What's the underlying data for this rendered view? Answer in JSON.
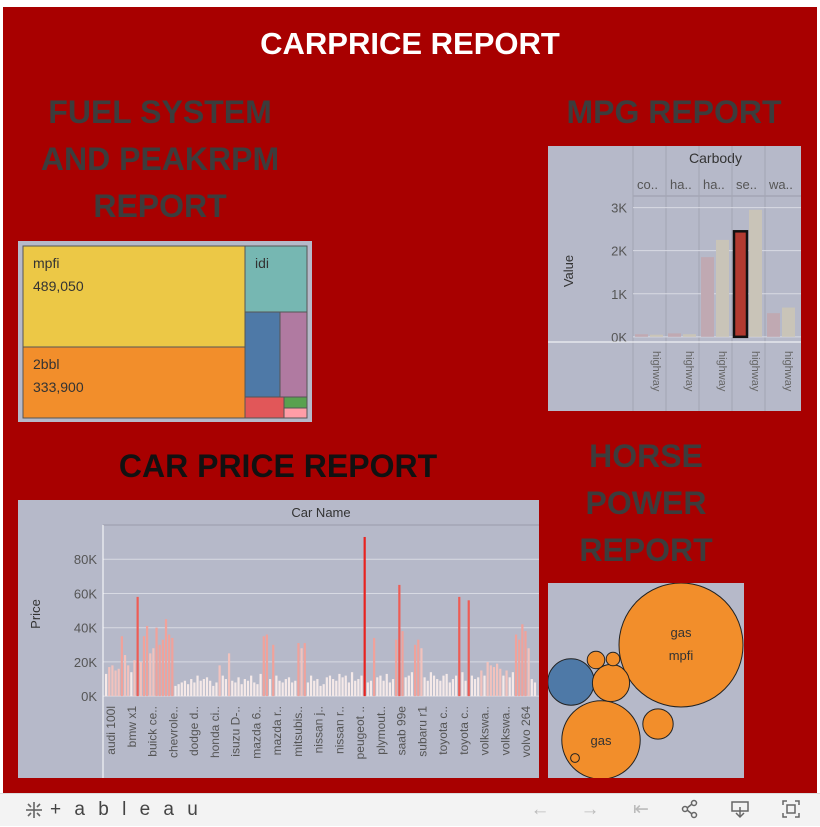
{
  "dashboard": {
    "title": "CARPRICE REPORT"
  },
  "sections": {
    "fuel_title": [
      "FUEL SYSTEM",
      "AND PEAKRPM",
      "REPORT"
    ],
    "mpg_title": "MPG REPORT",
    "price_title": "CAR PRICE REPORT",
    "hp_title": [
      "HORSE",
      "POWER",
      "REPORT"
    ]
  },
  "colors": {
    "background": "#a80000",
    "panel": "#b6b9c9",
    "mpfi": "#ecc846",
    "2bbl": "#f28e2b",
    "idi": "#76b7b2",
    "blue": "#4e79a7",
    "purple": "#b07aa1",
    "red": "#e15759",
    "green": "#59a14f",
    "pink": "#ff9da7",
    "bubble_orange": "#f28e2b",
    "bubble_blue": "#4e79a7"
  },
  "chart_data": [
    {
      "type": "treemap",
      "name": "fuel-system-treemap",
      "items": [
        {
          "label": "mpfi",
          "value": 489050,
          "value_label": "489,050",
          "color": "#ecc846"
        },
        {
          "label": "2bbl",
          "value": 333900,
          "value_label": "333,900",
          "color": "#f28e2b"
        },
        {
          "label": "idi",
          "value": 101000,
          "value_label": "",
          "color": "#76b7b2"
        },
        {
          "label": "",
          "value": 86000,
          "value_label": "",
          "color": "#4e79a7"
        },
        {
          "label": "",
          "value": 86000,
          "value_label": "",
          "color": "#b07aa1"
        },
        {
          "label": "",
          "value": 21000,
          "value_label": "",
          "color": "#e15759"
        },
        {
          "label": "",
          "value": 5500,
          "value_label": "",
          "color": "#59a14f"
        },
        {
          "label": "",
          "value": 5500,
          "value_label": "",
          "color": "#ff9da7"
        }
      ]
    },
    {
      "type": "bar",
      "name": "mpg-report",
      "header": "Carbody",
      "categories": [
        "co..",
        "ha..",
        "ha..",
        "se..",
        "wa.."
      ],
      "sub_label": "highway",
      "ylabel": "Value",
      "yticks": [
        "0K",
        "1K",
        "2K",
        "3K"
      ],
      "ylim": [
        -0.12,
        3.2
      ],
      "series": [
        {
          "values": [
            0.06,
            0.08,
            1.85,
            2.45,
            0.55
          ],
          "colors": [
            "#c0a9b2",
            "#c0a9b2",
            "#c0a9b2",
            "#b23a30",
            "#c0a9b2"
          ]
        },
        {
          "values": [
            0.05,
            0.06,
            2.25,
            2.95,
            0.68
          ],
          "colors": [
            "#c9c4b8",
            "#c9c4b8",
            "#c9c4b8",
            "#c9c4b8",
            "#c9c4b8"
          ]
        }
      ],
      "highlighted_index": 3
    },
    {
      "type": "bar",
      "name": "car-price-report",
      "header": "Car Name",
      "ylabel": "Price",
      "yticks": [
        "0K",
        "20K",
        "40K",
        "60K",
        "80K"
      ],
      "ylim": [
        -4,
        100
      ],
      "category_labels": [
        "audi 100l",
        "bmw x1",
        "buick ce..",
        "chevrole..",
        "dodge d..",
        "honda ci..",
        "isuzu D-..",
        "mazda 6..",
        "mazda r..",
        "mitsubis..",
        "nissan j..",
        "nissan r..",
        "peugeot ..",
        "plymout..",
        "saab 99e",
        "subaru r1",
        "toyota c..",
        "toyota c..",
        "volkswa..",
        "volkswa..",
        "volvo 264"
      ],
      "values_k": [
        13,
        17,
        18,
        15,
        16,
        35,
        24,
        18,
        14,
        21,
        58,
        20,
        35,
        41,
        25,
        28,
        40,
        30,
        33,
        45,
        36,
        34,
        6,
        7,
        8,
        9,
        7,
        10,
        8,
        12,
        9,
        10,
        11,
        9,
        6,
        8,
        18,
        12,
        10,
        25,
        9,
        8,
        11,
        7,
        10,
        9,
        12,
        8,
        7,
        13,
        35,
        36,
        10,
        30,
        12,
        9,
        8,
        10,
        11,
        8,
        9,
        31,
        28,
        31,
        8,
        12,
        9,
        10,
        6,
        7,
        11,
        12,
        10,
        9,
        13,
        11,
        12,
        8,
        14,
        9,
        10,
        12,
        93,
        8,
        9,
        34,
        11,
        12,
        9,
        13,
        8,
        10,
        33,
        65,
        38,
        11,
        12,
        14,
        30,
        33,
        28,
        11,
        9,
        14,
        12,
        10,
        9,
        12,
        13,
        8,
        10,
        12,
        58,
        14,
        9,
        56,
        12,
        10,
        11,
        15,
        12,
        20,
        18,
        17,
        19,
        16,
        12,
        15,
        11,
        14,
        36,
        33,
        42,
        38,
        28,
        10,
        8
      ]
    },
    {
      "type": "bubble",
      "name": "horse-power-report",
      "bubbles": [
        {
          "line1": "gas",
          "line2": "mpfi",
          "value": 100,
          "color": "#f28e2b"
        },
        {
          "line1": "gas",
          "line2": "",
          "value": 40,
          "color": "#f28e2b"
        },
        {
          "line1": "",
          "line2": "",
          "value": 14,
          "color": "#4e79a7"
        },
        {
          "line1": "",
          "line2": "",
          "value": 9,
          "color": "#f28e2b"
        },
        {
          "line1": "",
          "line2": "",
          "value": 6,
          "color": "#f28e2b"
        },
        {
          "line1": "",
          "line2": "",
          "value": 2,
          "color": "#f28e2b"
        },
        {
          "line1": "",
          "line2": "",
          "value": 1.2,
          "color": "#f28e2b"
        },
        {
          "line1": "",
          "line2": "",
          "value": 0.5,
          "color": "#f28e2b"
        }
      ]
    }
  ],
  "toolbar": {
    "logo_text": "+ a b l e a u",
    "icons": [
      "undo-icon",
      "redo-icon",
      "revert-icon",
      "share-icon",
      "download-icon",
      "fullscreen-icon"
    ]
  }
}
